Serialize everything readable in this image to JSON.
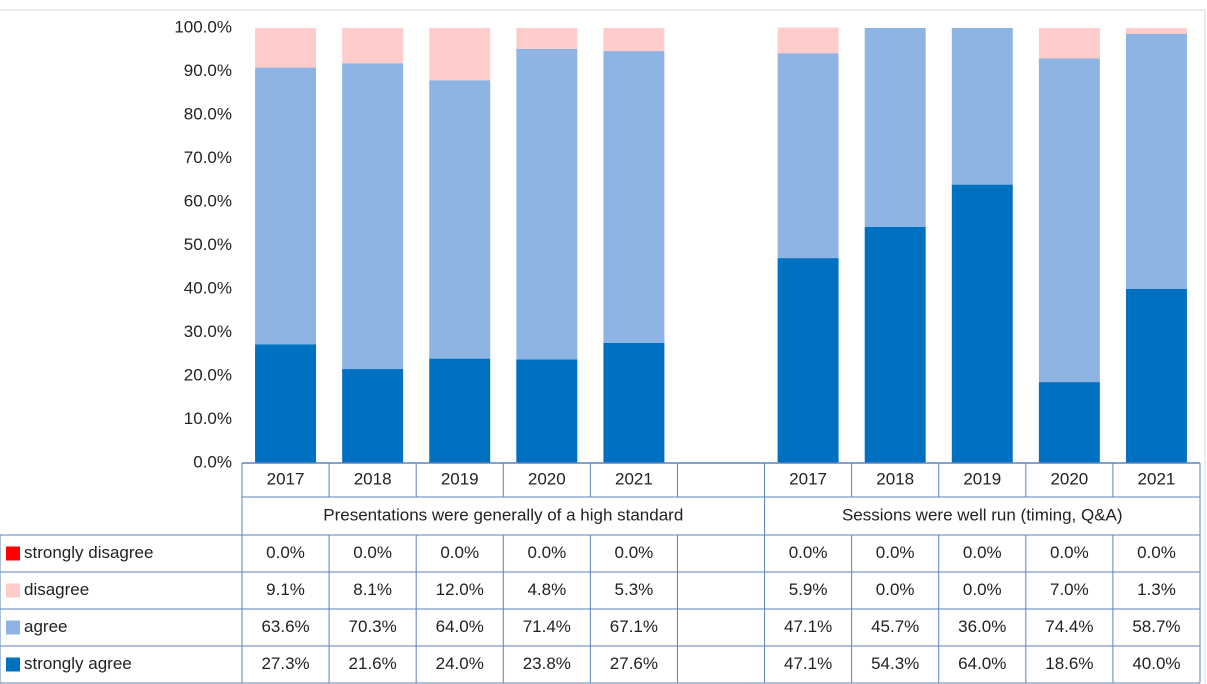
{
  "chart_data": {
    "type": "stacked_bar",
    "categories": [
      "2017",
      "2018",
      "2019",
      "2020",
      "2021",
      null,
      "2017",
      "2018",
      "2019",
      "2020",
      "2021"
    ],
    "groups": [
      {
        "name": "Presentations were generally of a high standard",
        "span": 6
      },
      {
        "name": "Sessions were well run (timing, Q&A)",
        "span": 5
      }
    ],
    "series": [
      {
        "name": "strongly disagree",
        "color": "#ff0000",
        "values": [
          0,
          0,
          0,
          0,
          0,
          null,
          0,
          0,
          0,
          0,
          0
        ],
        "value_labels": [
          "0.0%",
          "0.0%",
          "0.0%",
          "0.0%",
          "0.0%",
          null,
          "0.0%",
          "0.0%",
          "0.0%",
          "0.0%",
          "0.0%"
        ]
      },
      {
        "name": "disagree",
        "color": "#ffcccc",
        "values": [
          9.1,
          8.1,
          12.0,
          4.8,
          5.3,
          null,
          5.9,
          0,
          0,
          7.0,
          1.3
        ],
        "value_labels": [
          "9.1%",
          "8.1%",
          "12.0%",
          "4.8%",
          "5.3%",
          null,
          "5.9%",
          "0.0%",
          "0.0%",
          "7.0%",
          "1.3%"
        ]
      },
      {
        "name": "agree",
        "color": "#8eb4e3",
        "values": [
          63.6,
          70.3,
          64.0,
          71.4,
          67.1,
          null,
          47.1,
          45.7,
          36.0,
          74.4,
          58.7
        ],
        "value_labels": [
          "63.6%",
          "70.3%",
          "64.0%",
          "71.4%",
          "67.1%",
          null,
          "47.1%",
          "45.7%",
          "36.0%",
          "74.4%",
          "58.7%"
        ]
      },
      {
        "name": "strongly agree",
        "color": "#0070c0",
        "values": [
          27.3,
          21.6,
          24.0,
          23.8,
          27.6,
          null,
          47.1,
          54.3,
          64.0,
          18.6,
          40.0
        ],
        "value_labels": [
          "27.3%",
          "21.6%",
          "24.0%",
          "23.8%",
          "27.6%",
          null,
          "47.1%",
          "54.3%",
          "64.0%",
          "18.6%",
          "40.0%"
        ]
      }
    ],
    "ylim": [
      0,
      100
    ],
    "yticks": [
      {
        "value": 0,
        "label": "0.0%"
      },
      {
        "value": 10,
        "label": "10.0%"
      },
      {
        "value": 20,
        "label": "20.0%"
      },
      {
        "value": 30,
        "label": "30.0%"
      },
      {
        "value": 40,
        "label": "40.0%"
      },
      {
        "value": 50,
        "label": "50.0%"
      },
      {
        "value": 60,
        "label": "60.0%"
      },
      {
        "value": 70,
        "label": "70.0%"
      },
      {
        "value": 80,
        "label": "80.0%"
      },
      {
        "value": 90,
        "label": "90.0%"
      },
      {
        "value": 100,
        "label": "100.0%"
      }
    ],
    "grid": false
  }
}
